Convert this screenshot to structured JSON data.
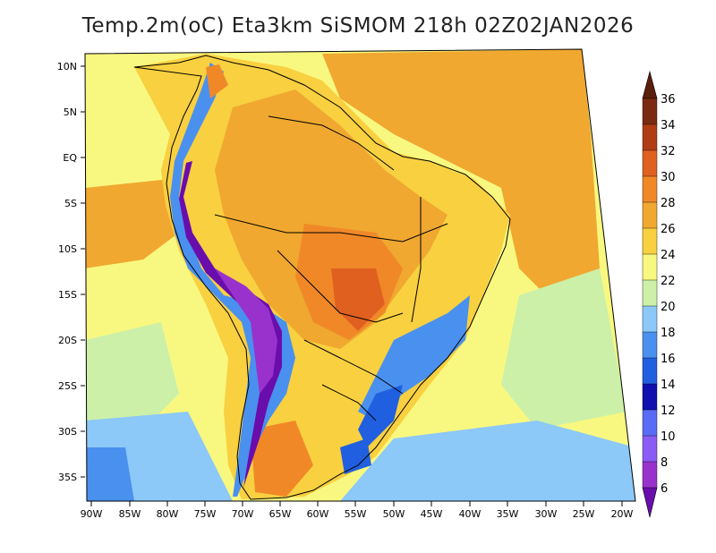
{
  "title": "Temp.2m(oC) Eta3km SiSMOM 218h 02Z02JAN2026",
  "lat_labels": [
    "10N",
    "5N",
    "EQ",
    "5S",
    "10S",
    "15S",
    "20S",
    "25S",
    "30S",
    "35S"
  ],
  "lon_labels": [
    "90W",
    "85W",
    "80W",
    "75W",
    "70W",
    "65W",
    "60W",
    "55W",
    "50W",
    "45W",
    "40W",
    "35W",
    "30W",
    "25W",
    "20W"
  ],
  "colorbar": {
    "labels": [
      "6",
      "8",
      "10",
      "12",
      "14",
      "16",
      "18",
      "20",
      "22",
      "24",
      "26",
      "28",
      "30",
      "32",
      "34",
      "36"
    ],
    "colors": [
      "#6a0dad",
      "#9932cc",
      "#8a5cf5",
      "#5a6cf5",
      "#1010b0",
      "#2060e0",
      "#4a90ee",
      "#8cc8f8",
      "#ccf0a8",
      "#f8f880",
      "#f8d040",
      "#f0a830",
      "#f08828",
      "#e06020",
      "#b03c14",
      "#7a2a10",
      "#5a1e0c"
    ]
  }
}
